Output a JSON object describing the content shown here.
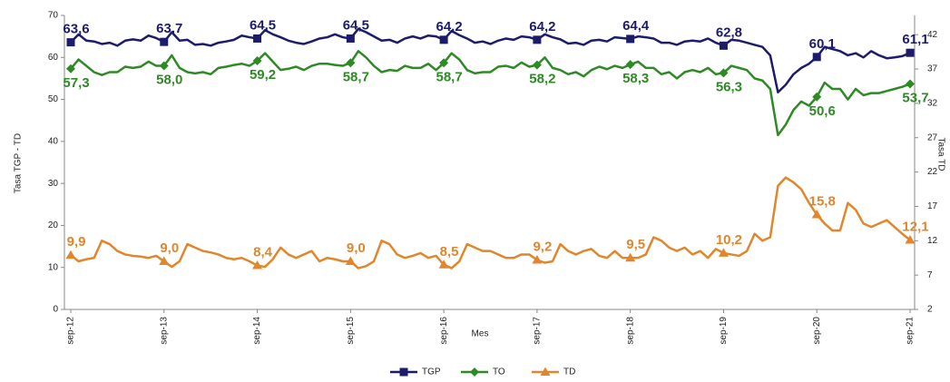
{
  "chart_data": {
    "type": "line",
    "ylabel": "Tasa TGP - TD",
    "y2label": "Tasa TD",
    "xlabel": "Mes",
    "categories": [
      "sep-12",
      null,
      null,
      null,
      null,
      null,
      null,
      null,
      null,
      null,
      null,
      null,
      "sep-13",
      null,
      null,
      null,
      null,
      null,
      null,
      null,
      null,
      null,
      null,
      null,
      "sep-14",
      null,
      null,
      null,
      null,
      null,
      null,
      null,
      null,
      null,
      null,
      null,
      "sep-15",
      null,
      null,
      null,
      null,
      null,
      null,
      null,
      null,
      null,
      null,
      null,
      "sep-16",
      null,
      null,
      null,
      null,
      null,
      null,
      null,
      null,
      null,
      null,
      null,
      "sep-17",
      null,
      null,
      null,
      null,
      null,
      null,
      null,
      null,
      null,
      null,
      null,
      "sep-18",
      null,
      null,
      null,
      null,
      null,
      null,
      null,
      null,
      null,
      null,
      null,
      "sep-19",
      null,
      null,
      null,
      null,
      null,
      null,
      null,
      null,
      null,
      null,
      null,
      "sep-20",
      null,
      null,
      null,
      null,
      null,
      null,
      null,
      null,
      null,
      null,
      null,
      "sep-21"
    ],
    "ylim": [
      0,
      70
    ],
    "yticks": [
      0,
      10,
      20,
      30,
      40,
      50,
      60,
      70
    ],
    "y2lim": [
      2,
      44.8
    ],
    "y2ticks": [
      2,
      7,
      12,
      17,
      22,
      27,
      32,
      37,
      42
    ],
    "legend": "bottom",
    "series": [
      {
        "name": "TGP",
        "color": "#1c1c6b",
        "axis": "y",
        "marker": "square",
        "label_side": "above",
        "values": [
          63.6,
          65.5,
          64.0,
          63.8,
          63.2,
          63.5,
          62.8,
          64.0,
          64.3,
          64.0,
          65.2,
          64.6,
          63.7,
          66.0,
          64.0,
          64.2,
          63.0,
          63.2,
          62.8,
          63.5,
          63.8,
          64.2,
          65.2,
          64.8,
          64.5,
          66.5,
          65.5,
          64.8,
          64.0,
          63.5,
          63.2,
          63.8,
          64.5,
          64.8,
          65.5,
          64.8,
          64.5,
          66.8,
          66.0,
          65.0,
          64.0,
          64.2,
          63.5,
          64.5,
          65.0,
          64.5,
          65.2,
          65.0,
          64.2,
          66.3,
          65.3,
          64.5,
          63.5,
          63.8,
          63.2,
          64.0,
          64.5,
          64.2,
          65.0,
          64.8,
          64.2,
          65.5,
          64.8,
          64.3,
          63.3,
          63.5,
          63.0,
          64.0,
          64.2,
          63.8,
          64.8,
          64.6,
          64.4,
          65.0,
          64.8,
          64.5,
          63.5,
          63.5,
          63.0,
          63.8,
          64.0,
          63.8,
          64.5,
          63.5,
          62.8,
          64.2,
          64.0,
          63.5,
          63.0,
          62.5,
          60.5,
          51.7,
          53.5,
          56.0,
          57.5,
          58.5,
          60.1,
          62.5,
          62.0,
          61.5,
          60.5,
          61.0,
          60.0,
          61.5,
          60.5,
          59.8,
          60.0,
          60.3,
          61.1
        ],
        "value_labels": [
          "63,6",
          null,
          null,
          null,
          null,
          null,
          null,
          null,
          null,
          null,
          null,
          null,
          "63,7",
          null,
          null,
          null,
          null,
          null,
          null,
          null,
          null,
          null,
          null,
          null,
          "64,5",
          null,
          null,
          null,
          null,
          null,
          null,
          null,
          null,
          null,
          null,
          null,
          "64,5",
          null,
          null,
          null,
          null,
          null,
          null,
          null,
          null,
          null,
          null,
          null,
          "64,2",
          null,
          null,
          null,
          null,
          null,
          null,
          null,
          null,
          null,
          null,
          null,
          "64,2",
          null,
          null,
          null,
          null,
          null,
          null,
          null,
          null,
          null,
          null,
          null,
          "64,4",
          null,
          null,
          null,
          null,
          null,
          null,
          null,
          null,
          null,
          null,
          null,
          "62,8",
          null,
          null,
          null,
          null,
          null,
          null,
          null,
          null,
          null,
          null,
          null,
          "60,1",
          null,
          null,
          null,
          null,
          null,
          null,
          null,
          null,
          null,
          null,
          null,
          "61,1"
        ]
      },
      {
        "name": "TO",
        "color": "#2e8a24",
        "axis": "y",
        "marker": "diamond",
        "label_side": "below",
        "values": [
          57.3,
          59.5,
          58.0,
          56.5,
          55.8,
          56.5,
          56.5,
          57.8,
          57.5,
          57.8,
          59.0,
          58.0,
          58.0,
          60.5,
          57.5,
          56.5,
          56.2,
          56.5,
          56.0,
          57.5,
          57.8,
          58.2,
          58.5,
          58.0,
          59.2,
          61.0,
          59.0,
          57.0,
          57.3,
          57.8,
          57.0,
          58.0,
          58.5,
          58.5,
          58.2,
          58.0,
          58.7,
          61.5,
          60.0,
          58.0,
          56.5,
          57.0,
          56.8,
          58.0,
          57.5,
          57.5,
          58.5,
          57.0,
          58.7,
          61.0,
          59.5,
          57.0,
          56.2,
          56.5,
          56.5,
          57.8,
          58.0,
          57.5,
          58.8,
          57.8,
          58.2,
          60.0,
          57.5,
          57.0,
          56.0,
          56.5,
          55.5,
          57.0,
          57.8,
          57.2,
          58.0,
          57.5,
          58.3,
          59.0,
          57.5,
          57.5,
          56.0,
          56.5,
          55.0,
          56.5,
          57.0,
          56.5,
          57.5,
          56.0,
          56.3,
          58.0,
          57.5,
          57.0,
          55.0,
          54.5,
          52.5,
          41.5,
          44.0,
          47.5,
          49.5,
          48.5,
          50.6,
          54.0,
          52.5,
          52.5,
          50.0,
          52.5,
          51.0,
          51.5,
          51.5,
          52.0,
          52.5,
          53.0,
          53.7
        ],
        "value_labels": [
          "57,3",
          null,
          null,
          null,
          null,
          null,
          null,
          null,
          null,
          null,
          null,
          null,
          "58,0",
          null,
          null,
          null,
          null,
          null,
          null,
          null,
          null,
          null,
          null,
          null,
          "59,2",
          null,
          null,
          null,
          null,
          null,
          null,
          null,
          null,
          null,
          null,
          null,
          "58,7",
          null,
          null,
          null,
          null,
          null,
          null,
          null,
          null,
          null,
          null,
          null,
          "58,7",
          null,
          null,
          null,
          null,
          null,
          null,
          null,
          null,
          null,
          null,
          null,
          "58,2",
          null,
          null,
          null,
          null,
          null,
          null,
          null,
          null,
          null,
          null,
          null,
          "58,3",
          null,
          null,
          null,
          null,
          null,
          null,
          null,
          null,
          null,
          null,
          null,
          "56,3",
          null,
          null,
          null,
          null,
          null,
          null,
          null,
          null,
          null,
          null,
          null,
          "50,6",
          null,
          null,
          null,
          null,
          null,
          null,
          null,
          null,
          null,
          null,
          null,
          "53,7"
        ]
      },
      {
        "name": "TD",
        "color": "#e0862c",
        "axis": "y2",
        "marker": "triangle",
        "label_side": "above",
        "values": [
          9.9,
          9.0,
          9.3,
          9.5,
          12.0,
          11.5,
          10.5,
          10.0,
          9.8,
          9.7,
          9.5,
          9.8,
          9.0,
          8.2,
          9.0,
          11.5,
          11.0,
          10.5,
          10.3,
          10.0,
          9.5,
          9.3,
          9.5,
          9.0,
          8.4,
          8.2,
          9.3,
          11.0,
          10.0,
          9.5,
          10.0,
          10.5,
          9.0,
          9.5,
          9.3,
          9.0,
          9.0,
          8.0,
          8.3,
          9.0,
          12.0,
          11.5,
          10.0,
          9.5,
          9.8,
          10.2,
          9.5,
          9.8,
          8.5,
          8.0,
          9.0,
          11.5,
          11.0,
          10.5,
          10.5,
          10.0,
          9.5,
          9.5,
          10.0,
          10.0,
          9.2,
          8.8,
          9.0,
          11.5,
          10.5,
          10.0,
          10.5,
          10.8,
          9.8,
          9.5,
          10.5,
          9.5,
          9.5,
          9.5,
          10.0,
          12.5,
          12.0,
          11.0,
          10.5,
          11.0,
          10.0,
          10.5,
          9.5,
          10.8,
          10.2,
          10.0,
          9.8,
          10.5,
          13.0,
          12.0,
          12.5,
          20.0,
          21.2,
          20.5,
          19.5,
          17.5,
          15.8,
          14.5,
          13.5,
          13.5,
          17.5,
          16.5,
          14.5,
          14.0,
          14.5,
          15.0,
          14.0,
          13.0,
          12.1
        ],
        "value_labels": [
          "9,9",
          null,
          null,
          null,
          null,
          null,
          null,
          null,
          null,
          null,
          null,
          null,
          "9,0",
          null,
          null,
          null,
          null,
          null,
          null,
          null,
          null,
          null,
          null,
          null,
          "8,4",
          null,
          null,
          null,
          null,
          null,
          null,
          null,
          null,
          null,
          null,
          null,
          "9,0",
          null,
          null,
          null,
          null,
          null,
          null,
          null,
          null,
          null,
          null,
          null,
          "8,5",
          null,
          null,
          null,
          null,
          null,
          null,
          null,
          null,
          null,
          null,
          null,
          "9,2",
          null,
          null,
          null,
          null,
          null,
          null,
          null,
          null,
          null,
          null,
          null,
          "9,5",
          null,
          null,
          null,
          null,
          null,
          null,
          null,
          null,
          null,
          null,
          null,
          "10,2",
          null,
          null,
          null,
          null,
          null,
          null,
          null,
          null,
          null,
          null,
          null,
          "15,8",
          null,
          null,
          null,
          null,
          null,
          null,
          null,
          null,
          null,
          null,
          null,
          "12,1"
        ]
      }
    ]
  }
}
